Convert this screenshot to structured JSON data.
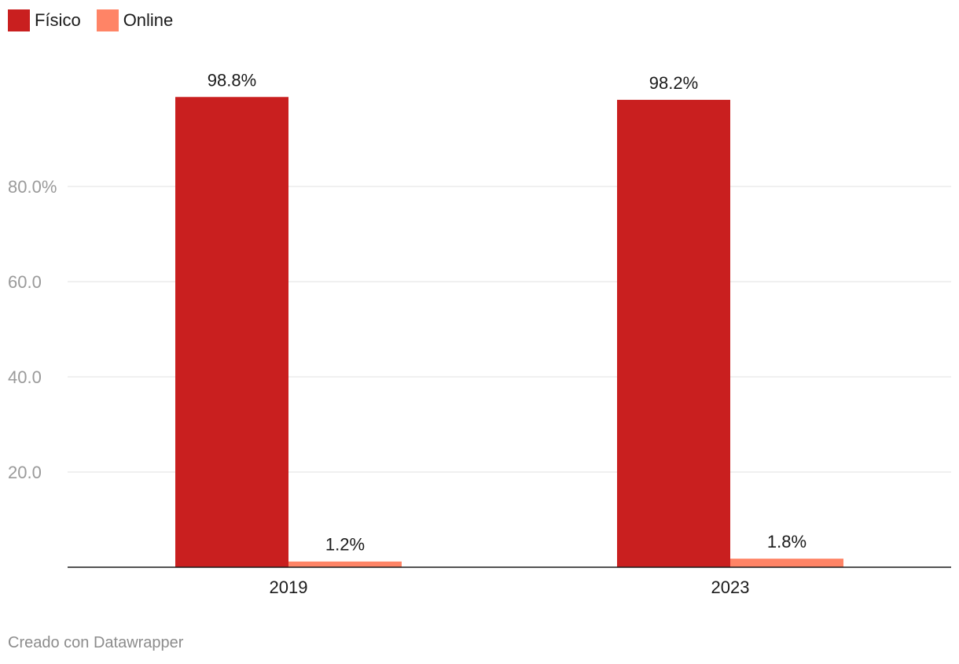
{
  "legend": [
    {
      "label": "Físico",
      "color": "#c91f1f"
    },
    {
      "label": "Online",
      "color": "#ff8466"
    }
  ],
  "footer": {
    "credit": "Creado con Datawrapper"
  },
  "chart_data": {
    "type": "bar",
    "categories": [
      "2019",
      "2023"
    ],
    "series": [
      {
        "name": "Físico",
        "color": "#c91f1f",
        "values": [
          98.8,
          98.2
        ],
        "labels": [
          "98.8%",
          "98.2%"
        ]
      },
      {
        "name": "Online",
        "color": "#ff8466",
        "values": [
          1.2,
          1.8
        ],
        "labels": [
          "1.2%",
          "1.8%"
        ]
      }
    ],
    "yticks": [
      20,
      40,
      60,
      80
    ],
    "ytick_labels": [
      "20.0",
      "40.0",
      "60.0",
      "80.0%"
    ],
    "ylim": [
      0,
      100
    ],
    "grid": true,
    "legend_position": "top-left"
  }
}
